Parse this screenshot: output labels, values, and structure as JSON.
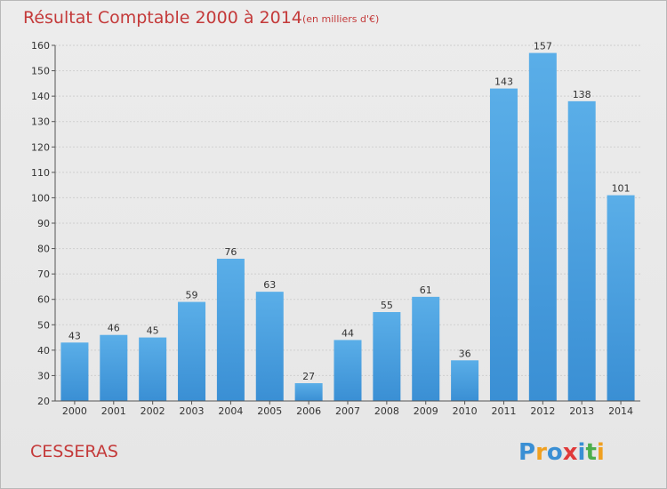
{
  "chart_data": {
    "type": "bar",
    "title": "Résultat Comptable 2000 à 2014",
    "subtitle": "(en milliers d'€)",
    "categories": [
      "2000",
      "2001",
      "2002",
      "2003",
      "2004",
      "2005",
      "2006",
      "2007",
      "2008",
      "2009",
      "2010",
      "2011",
      "2012",
      "2013",
      "2014"
    ],
    "values": [
      43,
      46,
      45,
      59,
      76,
      63,
      27,
      44,
      55,
      61,
      36,
      143,
      157,
      138,
      101
    ],
    "ylim": [
      20,
      160
    ],
    "yticks": [
      20,
      30,
      40,
      50,
      60,
      70,
      80,
      90,
      100,
      110,
      120,
      130,
      140,
      150,
      160
    ],
    "grid": true,
    "bar_color": "#3a8fd4",
    "bar_color_light": "#5aaee8"
  },
  "place_name": "CESSERAS",
  "logo": {
    "letters": [
      "P",
      "r",
      "o",
      "x",
      "i",
      "t",
      "i"
    ],
    "colors": [
      "#3a8fd4",
      "#f0a020",
      "#3a8fd4",
      "#e03a3a",
      "#3a8fd4",
      "#4cae4c",
      "#f0a020"
    ]
  }
}
